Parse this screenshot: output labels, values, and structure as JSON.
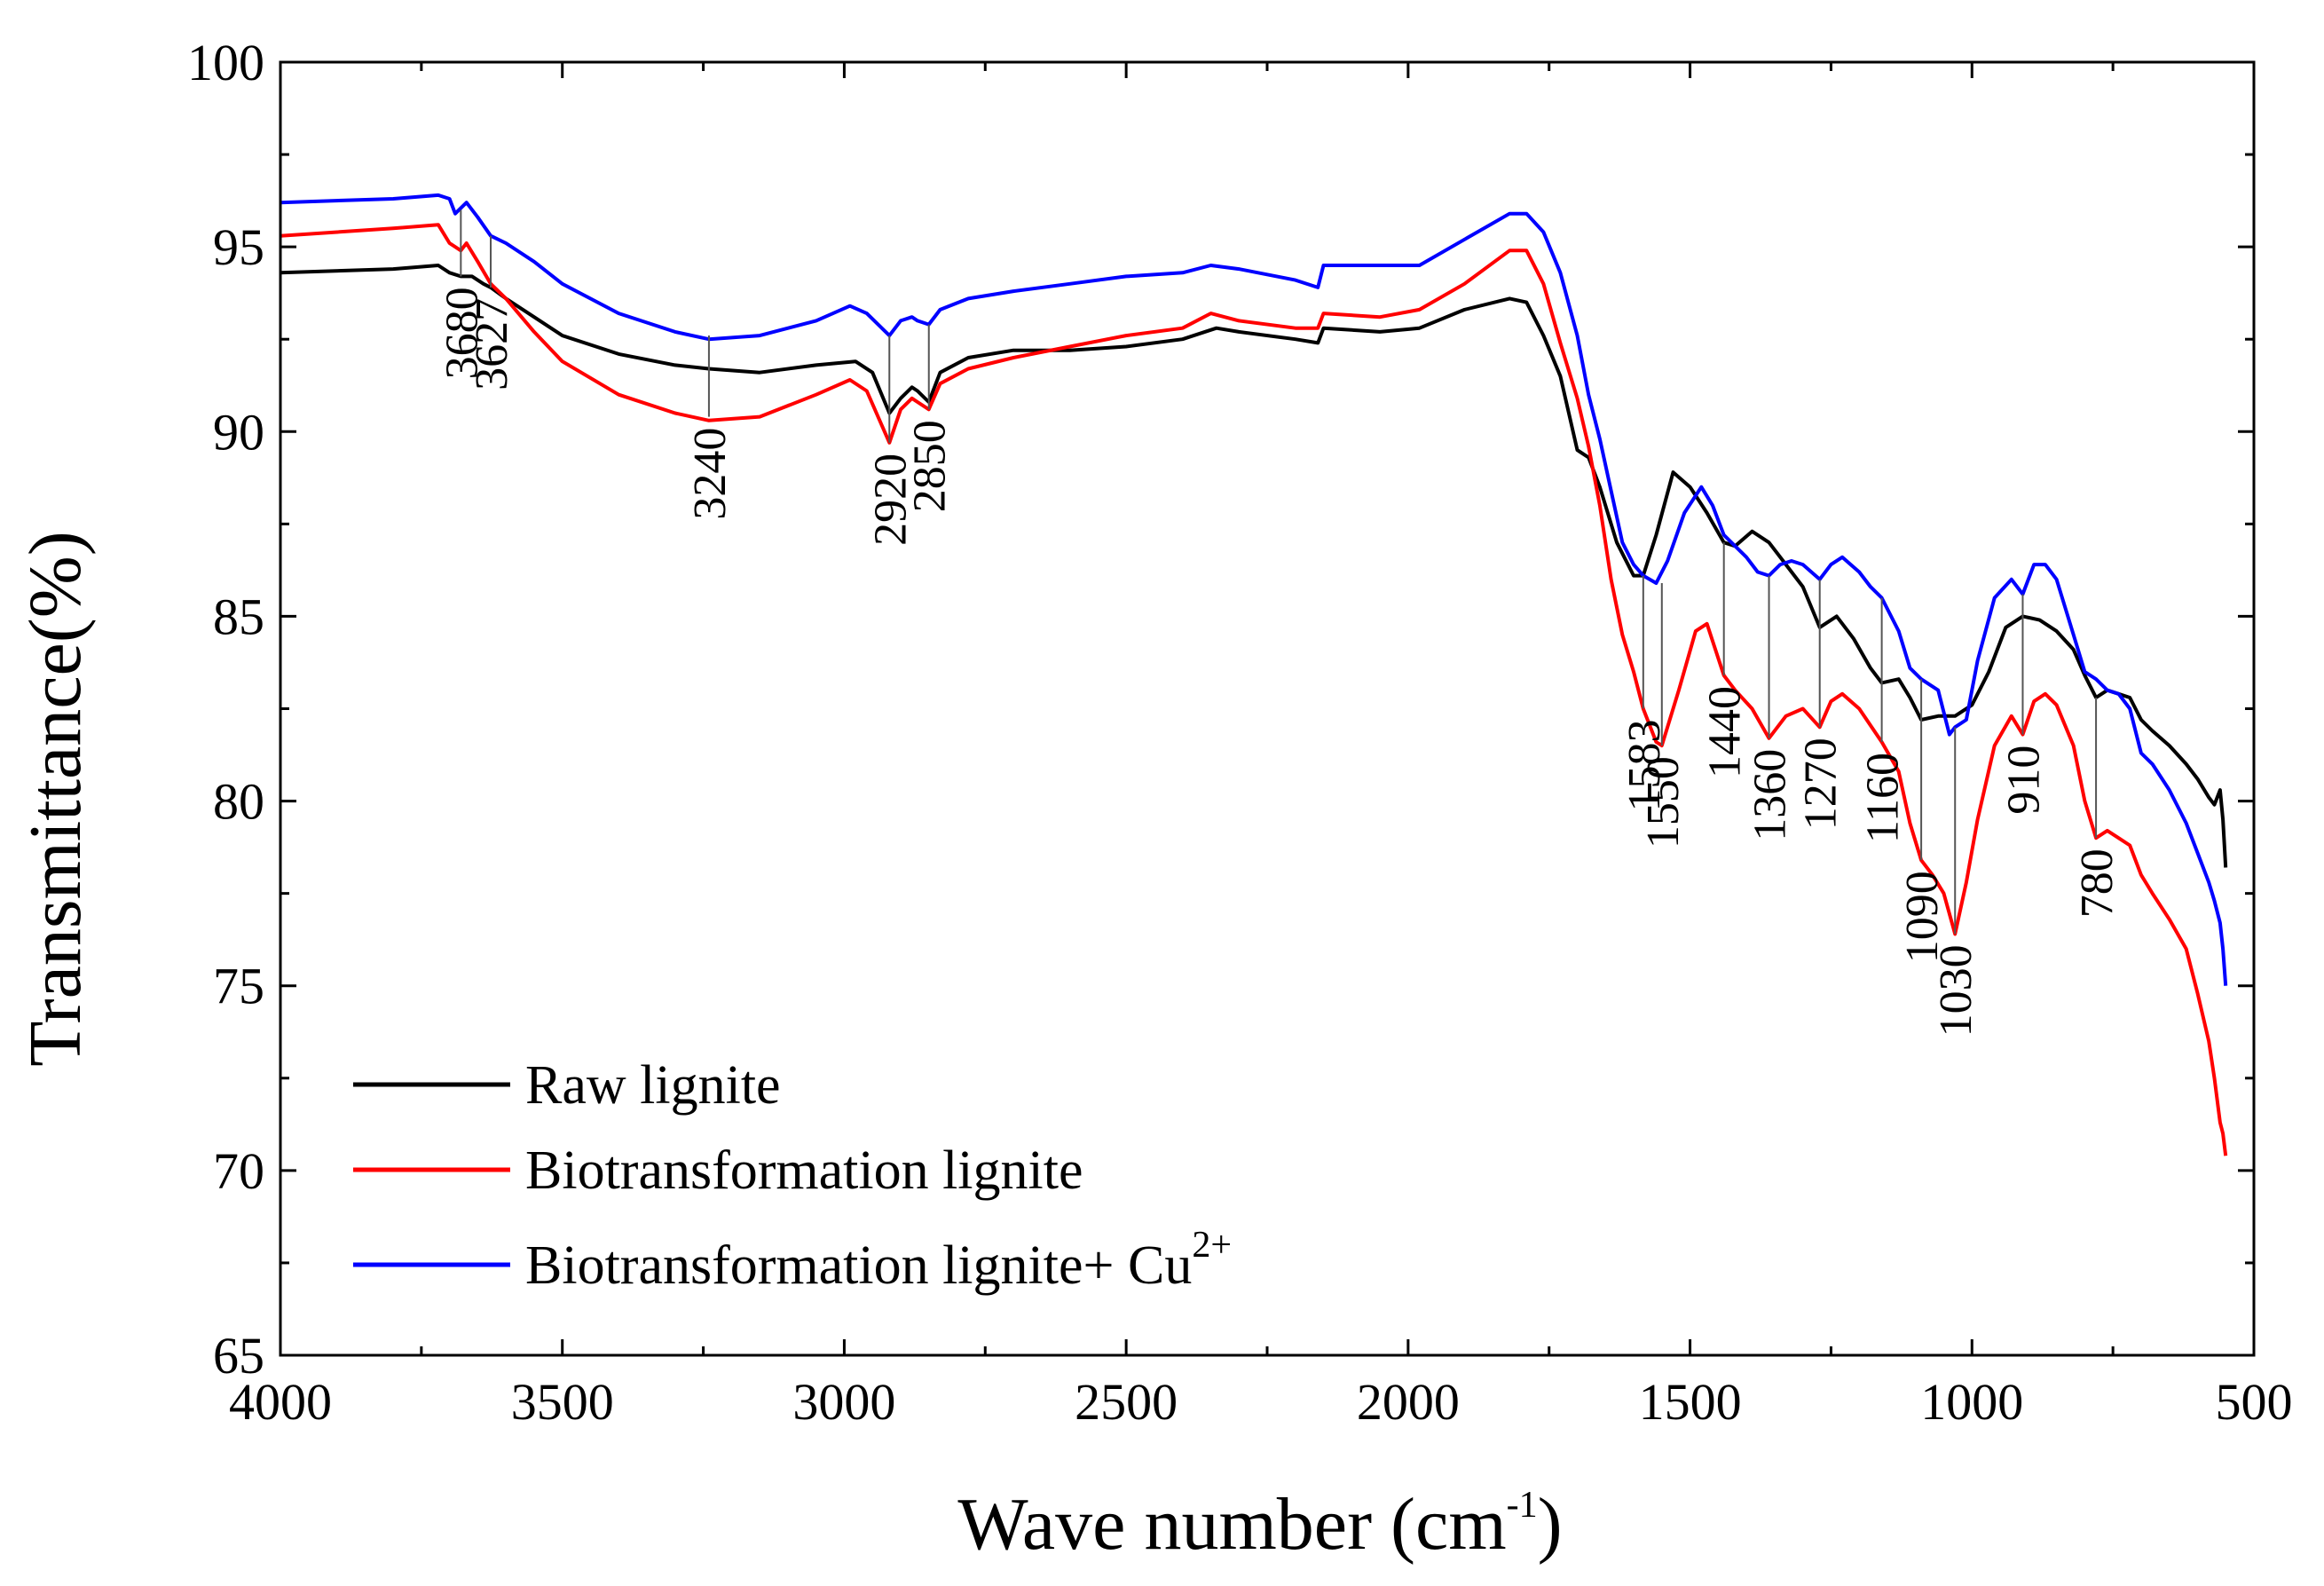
{
  "chart_data": {
    "type": "line",
    "title": "",
    "xlabel": "Wave number (cm",
    "xlabel_sup": "-1",
    "xlabel_tail": ")",
    "ylabel": "Transmittance(%)",
    "xlim": [
      4000,
      500
    ],
    "ylim": [
      65,
      100
    ],
    "x_ticks": [
      4000,
      3500,
      3000,
      2500,
      2000,
      1500,
      1000,
      500
    ],
    "x_tick_labels": [
      "4000",
      "3500",
      "3000",
      "2500",
      "2000",
      "1500",
      "1000",
      "500"
    ],
    "y_ticks": [
      65,
      70,
      75,
      80,
      85,
      90,
      95,
      100
    ],
    "y_tick_labels": [
      "65",
      "70",
      "75",
      "80",
      "85",
      "90",
      "95",
      "100"
    ],
    "grid": false,
    "legend_position": "bottom-left",
    "series": [
      {
        "name": "Raw lignite",
        "color": "#000000",
        "points": [
          [
            4000,
            94.3
          ],
          [
            3800,
            94.4
          ],
          [
            3720,
            94.5
          ],
          [
            3700,
            94.3
          ],
          [
            3680,
            94.2
          ],
          [
            3660,
            94.2
          ],
          [
            3640,
            94.0
          ],
          [
            3627,
            93.9
          ],
          [
            3600,
            93.6
          ],
          [
            3550,
            93.1
          ],
          [
            3500,
            92.6
          ],
          [
            3400,
            92.1
          ],
          [
            3300,
            91.8
          ],
          [
            3240,
            91.7
          ],
          [
            3150,
            91.6
          ],
          [
            3050,
            91.8
          ],
          [
            2980,
            91.9
          ],
          [
            2950,
            91.6
          ],
          [
            2920,
            90.5
          ],
          [
            2900,
            90.9
          ],
          [
            2880,
            91.2
          ],
          [
            2870,
            91.1
          ],
          [
            2850,
            90.8
          ],
          [
            2830,
            91.6
          ],
          [
            2780,
            92.0
          ],
          [
            2700,
            92.2
          ],
          [
            2600,
            92.2
          ],
          [
            2500,
            92.3
          ],
          [
            2400,
            92.5
          ],
          [
            2340,
            92.8
          ],
          [
            2300,
            92.7
          ],
          [
            2200,
            92.5
          ],
          [
            2160,
            92.4
          ],
          [
            2150,
            92.8
          ],
          [
            2050,
            92.7
          ],
          [
            1980,
            92.8
          ],
          [
            1900,
            93.3
          ],
          [
            1820,
            93.6
          ],
          [
            1790,
            93.5
          ],
          [
            1760,
            92.6
          ],
          [
            1730,
            91.5
          ],
          [
            1700,
            89.5
          ],
          [
            1680,
            89.3
          ],
          [
            1660,
            88.5
          ],
          [
            1630,
            87.0
          ],
          [
            1600,
            86.1
          ],
          [
            1583,
            86.1
          ],
          [
            1560,
            87.2
          ],
          [
            1530,
            88.9
          ],
          [
            1500,
            88.5
          ],
          [
            1470,
            87.8
          ],
          [
            1440,
            87.0
          ],
          [
            1420,
            86.9
          ],
          [
            1390,
            87.3
          ],
          [
            1360,
            87.0
          ],
          [
            1330,
            86.4
          ],
          [
            1300,
            85.8
          ],
          [
            1270,
            84.7
          ],
          [
            1240,
            85.0
          ],
          [
            1210,
            84.4
          ],
          [
            1180,
            83.6
          ],
          [
            1160,
            83.2
          ],
          [
            1130,
            83.3
          ],
          [
            1110,
            82.8
          ],
          [
            1090,
            82.2
          ],
          [
            1060,
            82.3
          ],
          [
            1030,
            82.3
          ],
          [
            1000,
            82.6
          ],
          [
            970,
            83.5
          ],
          [
            940,
            84.7
          ],
          [
            910,
            85.0
          ],
          [
            880,
            84.9
          ],
          [
            850,
            84.6
          ],
          [
            820,
            84.1
          ],
          [
            800,
            83.4
          ],
          [
            780,
            82.8
          ],
          [
            760,
            83.0
          ],
          [
            740,
            82.9
          ],
          [
            720,
            82.8
          ],
          [
            700,
            82.2
          ],
          [
            680,
            81.9
          ],
          [
            650,
            81.5
          ],
          [
            620,
            81.0
          ],
          [
            600,
            80.6
          ],
          [
            580,
            80.1
          ],
          [
            570,
            79.9
          ],
          [
            560,
            80.3
          ],
          [
            555,
            79.5
          ],
          [
            550,
            78.2
          ]
        ]
      },
      {
        "name": "Biotransformation lignite",
        "color": "#ff0000",
        "points": [
          [
            4000,
            95.3
          ],
          [
            3800,
            95.5
          ],
          [
            3720,
            95.6
          ],
          [
            3700,
            95.1
          ],
          [
            3680,
            94.9
          ],
          [
            3670,
            95.1
          ],
          [
            3650,
            94.6
          ],
          [
            3627,
            94.0
          ],
          [
            3600,
            93.6
          ],
          [
            3550,
            92.7
          ],
          [
            3500,
            91.9
          ],
          [
            3400,
            91.0
          ],
          [
            3300,
            90.5
          ],
          [
            3240,
            90.3
          ],
          [
            3150,
            90.4
          ],
          [
            3050,
            91.0
          ],
          [
            2990,
            91.4
          ],
          [
            2960,
            91.1
          ],
          [
            2920,
            89.7
          ],
          [
            2900,
            90.6
          ],
          [
            2880,
            90.9
          ],
          [
            2870,
            90.8
          ],
          [
            2850,
            90.6
          ],
          [
            2830,
            91.3
          ],
          [
            2780,
            91.7
          ],
          [
            2700,
            92.0
          ],
          [
            2600,
            92.3
          ],
          [
            2500,
            92.6
          ],
          [
            2400,
            92.8
          ],
          [
            2350,
            93.2
          ],
          [
            2300,
            93.0
          ],
          [
            2200,
            92.8
          ],
          [
            2160,
            92.8
          ],
          [
            2150,
            93.2
          ],
          [
            2050,
            93.1
          ],
          [
            1980,
            93.3
          ],
          [
            1900,
            94.0
          ],
          [
            1820,
            94.9
          ],
          [
            1790,
            94.9
          ],
          [
            1760,
            94.0
          ],
          [
            1730,
            92.4
          ],
          [
            1700,
            90.9
          ],
          [
            1680,
            89.6
          ],
          [
            1660,
            88.0
          ],
          [
            1640,
            86.0
          ],
          [
            1620,
            84.5
          ],
          [
            1600,
            83.5
          ],
          [
            1583,
            82.5
          ],
          [
            1560,
            81.6
          ],
          [
            1550,
            81.5
          ],
          [
            1520,
            83.0
          ],
          [
            1490,
            84.6
          ],
          [
            1470,
            84.8
          ],
          [
            1440,
            83.4
          ],
          [
            1420,
            83.0
          ],
          [
            1390,
            82.5
          ],
          [
            1360,
            81.7
          ],
          [
            1330,
            82.3
          ],
          [
            1300,
            82.5
          ],
          [
            1270,
            82.0
          ],
          [
            1250,
            82.7
          ],
          [
            1230,
            82.9
          ],
          [
            1200,
            82.5
          ],
          [
            1160,
            81.6
          ],
          [
            1130,
            80.8
          ],
          [
            1110,
            79.4
          ],
          [
            1090,
            78.4
          ],
          [
            1070,
            78.0
          ],
          [
            1050,
            77.5
          ],
          [
            1030,
            76.4
          ],
          [
            1010,
            77.8
          ],
          [
            990,
            79.5
          ],
          [
            960,
            81.5
          ],
          [
            930,
            82.3
          ],
          [
            910,
            81.8
          ],
          [
            890,
            82.7
          ],
          [
            870,
            82.9
          ],
          [
            850,
            82.6
          ],
          [
            820,
            81.5
          ],
          [
            800,
            80.0
          ],
          [
            780,
            79.0
          ],
          [
            760,
            79.2
          ],
          [
            740,
            79.0
          ],
          [
            720,
            78.8
          ],
          [
            700,
            78.0
          ],
          [
            680,
            77.5
          ],
          [
            650,
            76.8
          ],
          [
            620,
            76.0
          ],
          [
            600,
            74.8
          ],
          [
            580,
            73.5
          ],
          [
            570,
            72.5
          ],
          [
            560,
            71.3
          ],
          [
            555,
            71.0
          ],
          [
            550,
            70.4
          ]
        ]
      },
      {
        "name": "Biotransformation lignite+ Cu",
        "color": "#0000ff",
        "points": [
          [
            4000,
            96.2
          ],
          [
            3800,
            96.3
          ],
          [
            3720,
            96.4
          ],
          [
            3700,
            96.3
          ],
          [
            3690,
            95.9
          ],
          [
            3670,
            96.2
          ],
          [
            3650,
            95.8
          ],
          [
            3627,
            95.3
          ],
          [
            3600,
            95.1
          ],
          [
            3550,
            94.6
          ],
          [
            3500,
            94.0
          ],
          [
            3400,
            93.2
          ],
          [
            3300,
            92.7
          ],
          [
            3240,
            92.5
          ],
          [
            3150,
            92.6
          ],
          [
            3050,
            93.0
          ],
          [
            2990,
            93.4
          ],
          [
            2960,
            93.2
          ],
          [
            2920,
            92.6
          ],
          [
            2900,
            93.0
          ],
          [
            2880,
            93.1
          ],
          [
            2870,
            93.0
          ],
          [
            2850,
            92.9
          ],
          [
            2830,
            93.3
          ],
          [
            2780,
            93.6
          ],
          [
            2700,
            93.8
          ],
          [
            2600,
            94.0
          ],
          [
            2500,
            94.2
          ],
          [
            2400,
            94.3
          ],
          [
            2350,
            94.5
          ],
          [
            2300,
            94.4
          ],
          [
            2200,
            94.1
          ],
          [
            2160,
            93.9
          ],
          [
            2150,
            94.5
          ],
          [
            2050,
            94.5
          ],
          [
            1980,
            94.5
          ],
          [
            1900,
            95.2
          ],
          [
            1820,
            95.9
          ],
          [
            1790,
            95.9
          ],
          [
            1760,
            95.4
          ],
          [
            1730,
            94.3
          ],
          [
            1700,
            92.6
          ],
          [
            1680,
            91.0
          ],
          [
            1660,
            89.8
          ],
          [
            1640,
            88.4
          ],
          [
            1620,
            87.0
          ],
          [
            1600,
            86.4
          ],
          [
            1583,
            86.1
          ],
          [
            1560,
            85.9
          ],
          [
            1540,
            86.5
          ],
          [
            1510,
            87.8
          ],
          [
            1480,
            88.5
          ],
          [
            1460,
            88.0
          ],
          [
            1440,
            87.2
          ],
          [
            1420,
            86.9
          ],
          [
            1400,
            86.6
          ],
          [
            1380,
            86.2
          ],
          [
            1360,
            86.1
          ],
          [
            1340,
            86.4
          ],
          [
            1320,
            86.5
          ],
          [
            1300,
            86.4
          ],
          [
            1270,
            86.0
          ],
          [
            1250,
            86.4
          ],
          [
            1230,
            86.6
          ],
          [
            1200,
            86.2
          ],
          [
            1180,
            85.8
          ],
          [
            1160,
            85.5
          ],
          [
            1130,
            84.6
          ],
          [
            1110,
            83.6
          ],
          [
            1090,
            83.3
          ],
          [
            1060,
            83.0
          ],
          [
            1040,
            81.8
          ],
          [
            1030,
            82.0
          ],
          [
            1010,
            82.2
          ],
          [
            990,
            83.8
          ],
          [
            960,
            85.5
          ],
          [
            930,
            86.0
          ],
          [
            910,
            85.6
          ],
          [
            890,
            86.4
          ],
          [
            870,
            86.4
          ],
          [
            850,
            86.0
          ],
          [
            820,
            84.5
          ],
          [
            800,
            83.5
          ],
          [
            780,
            83.3
          ],
          [
            760,
            83.0
          ],
          [
            740,
            82.9
          ],
          [
            720,
            82.5
          ],
          [
            700,
            81.3
          ],
          [
            680,
            81.0
          ],
          [
            650,
            80.3
          ],
          [
            620,
            79.4
          ],
          [
            600,
            78.6
          ],
          [
            580,
            77.8
          ],
          [
            570,
            77.3
          ],
          [
            560,
            76.7
          ],
          [
            555,
            76.0
          ],
          [
            550,
            75.0
          ]
        ]
      }
    ],
    "annotations": [
      {
        "label": "3680",
        "x": 3680,
        "y_from": 94.2,
        "y_to": 96.0
      },
      {
        "label": "3627",
        "x": 3627,
        "y_from": 93.9,
        "y_to": 95.3
      },
      {
        "label": "3240",
        "x": 3240,
        "y_from": 90.4,
        "y_to": 92.6
      },
      {
        "label": "2920",
        "x": 2920,
        "y_from": 89.7,
        "y_to": 92.6
      },
      {
        "label": "2850",
        "x": 2850,
        "y_from": 90.6,
        "y_to": 92.9
      },
      {
        "label": "1583",
        "x": 1583,
        "y_from": 82.5,
        "y_to": 86.1
      },
      {
        "label": "1550",
        "x": 1550,
        "y_from": 81.5,
        "y_to": 85.9
      },
      {
        "label": "1440",
        "x": 1440,
        "y_from": 83.4,
        "y_to": 87.0
      },
      {
        "label": "1360",
        "x": 1360,
        "y_from": 81.7,
        "y_to": 86.1
      },
      {
        "label": "1270",
        "x": 1270,
        "y_from": 82.0,
        "y_to": 86.0
      },
      {
        "label": "1160",
        "x": 1160,
        "y_from": 81.6,
        "y_to": 85.5
      },
      {
        "label": "1090",
        "x": 1090,
        "y_from": 78.4,
        "y_to": 83.3
      },
      {
        "label": "1030",
        "x": 1030,
        "y_from": 76.4,
        "y_to": 82.0
      },
      {
        "label": "910",
        "x": 910,
        "y_from": 81.8,
        "y_to": 85.6
      },
      {
        "label": "780",
        "x": 780,
        "y_from": 79.0,
        "y_to": 82.8
      }
    ],
    "legend_superscript": "2+"
  }
}
